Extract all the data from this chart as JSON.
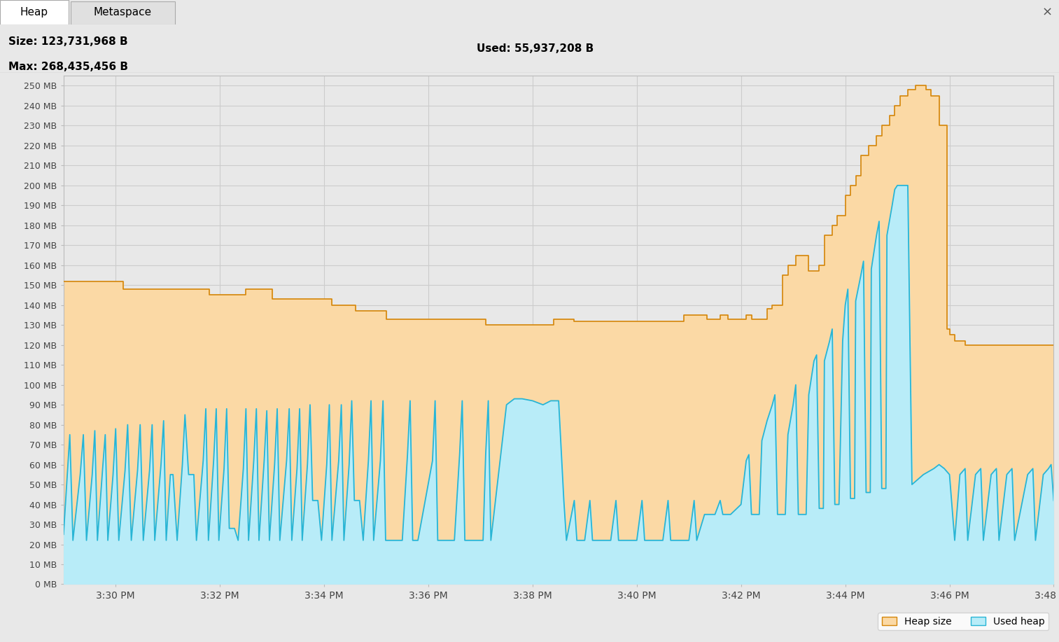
{
  "title_left_line1": "Size: 123,731,968 B",
  "title_left_line2": "Max: 268,435,456 B",
  "title_right": "Used: 55,937,208 B",
  "tab_heap": "Heap",
  "tab_metaspace": "Metaspace",
  "y_min_mb": 0,
  "y_max_mb": 255,
  "y_ticks_mb": [
    0,
    10,
    20,
    30,
    40,
    50,
    60,
    70,
    80,
    90,
    100,
    110,
    120,
    130,
    140,
    150,
    160,
    170,
    180,
    190,
    200,
    210,
    220,
    230,
    240,
    250
  ],
  "x_tick_labels": [
    "3:30 PM",
    "3:32 PM",
    "3:34 PM",
    "3:36 PM",
    "3:38 PM",
    "3:40 PM",
    "3:42 PM",
    "3:44 PM",
    "3:46 PM",
    "3:48 PM"
  ],
  "x_tick_positions": [
    1.0,
    3.0,
    5.0,
    7.0,
    9.0,
    11.0,
    13.0,
    15.0,
    17.0,
    19.0
  ],
  "heap_color": "#fbd9a5",
  "heap_edge_color": "#d4860a",
  "used_color": "#b8ecf8",
  "used_edge_color": "#28b5d5",
  "plot_bg_color": "#e8e8e8",
  "grid_color": "#cccccc",
  "heap_size_data": [
    [
      0.0,
      152
    ],
    [
      0.05,
      152
    ],
    [
      0.05,
      152
    ],
    [
      1.15,
      152
    ],
    [
      1.15,
      148
    ],
    [
      1.15,
      148
    ],
    [
      2.8,
      148
    ],
    [
      2.8,
      145
    ],
    [
      3.5,
      145
    ],
    [
      3.5,
      148
    ],
    [
      4.0,
      148
    ],
    [
      4.0,
      143
    ],
    [
      5.15,
      143
    ],
    [
      5.15,
      140
    ],
    [
      5.6,
      140
    ],
    [
      5.6,
      137
    ],
    [
      6.2,
      137
    ],
    [
      6.2,
      133
    ],
    [
      8.1,
      133
    ],
    [
      8.1,
      130
    ],
    [
      9.4,
      130
    ],
    [
      9.4,
      133
    ],
    [
      9.4,
      133
    ],
    [
      9.6,
      133
    ],
    [
      9.8,
      133
    ],
    [
      9.8,
      132
    ],
    [
      11.9,
      132
    ],
    [
      11.9,
      135
    ],
    [
      12.35,
      135
    ],
    [
      12.35,
      133
    ],
    [
      12.6,
      133
    ],
    [
      12.6,
      135
    ],
    [
      12.75,
      135
    ],
    [
      12.75,
      133
    ],
    [
      13.1,
      133
    ],
    [
      13.1,
      135
    ],
    [
      13.2,
      135
    ],
    [
      13.2,
      133
    ],
    [
      13.5,
      133
    ],
    [
      13.5,
      138
    ],
    [
      13.6,
      138
    ],
    [
      13.6,
      140
    ],
    [
      13.8,
      140
    ],
    [
      13.8,
      155
    ],
    [
      13.9,
      155
    ],
    [
      13.9,
      160
    ],
    [
      14.05,
      160
    ],
    [
      14.05,
      165
    ],
    [
      14.3,
      165
    ],
    [
      14.3,
      157
    ],
    [
      14.5,
      157
    ],
    [
      14.5,
      160
    ],
    [
      14.6,
      160
    ],
    [
      14.6,
      175
    ],
    [
      14.75,
      175
    ],
    [
      14.75,
      180
    ],
    [
      14.85,
      180
    ],
    [
      14.85,
      185
    ],
    [
      15.0,
      185
    ],
    [
      15.0,
      195
    ],
    [
      15.1,
      195
    ],
    [
      15.1,
      200
    ],
    [
      15.2,
      200
    ],
    [
      15.2,
      205
    ],
    [
      15.3,
      205
    ],
    [
      15.3,
      215
    ],
    [
      15.45,
      215
    ],
    [
      15.45,
      220
    ],
    [
      15.6,
      220
    ],
    [
      15.6,
      225
    ],
    [
      15.7,
      225
    ],
    [
      15.7,
      230
    ],
    [
      15.85,
      230
    ],
    [
      15.85,
      235
    ],
    [
      15.95,
      235
    ],
    [
      15.95,
      240
    ],
    [
      16.05,
      240
    ],
    [
      16.05,
      245
    ],
    [
      16.2,
      245
    ],
    [
      16.2,
      248
    ],
    [
      16.35,
      248
    ],
    [
      16.35,
      250
    ],
    [
      16.55,
      250
    ],
    [
      16.55,
      248
    ],
    [
      16.65,
      248
    ],
    [
      16.65,
      245
    ],
    [
      16.8,
      245
    ],
    [
      16.8,
      230
    ],
    [
      16.95,
      230
    ],
    [
      16.95,
      128
    ],
    [
      17.0,
      128
    ],
    [
      17.0,
      125
    ],
    [
      17.1,
      125
    ],
    [
      17.1,
      122
    ],
    [
      17.3,
      122
    ],
    [
      17.3,
      120
    ],
    [
      19.0,
      120
    ]
  ],
  "used_heap_data": [
    [
      0.0,
      25
    ],
    [
      0.12,
      75
    ],
    [
      0.18,
      22
    ],
    [
      0.32,
      55
    ],
    [
      0.38,
      75
    ],
    [
      0.44,
      22
    ],
    [
      0.55,
      55
    ],
    [
      0.6,
      77
    ],
    [
      0.65,
      22
    ],
    [
      0.75,
      58
    ],
    [
      0.8,
      75
    ],
    [
      0.85,
      22
    ],
    [
      0.95,
      55
    ],
    [
      1.0,
      78
    ],
    [
      1.06,
      22
    ],
    [
      1.18,
      57
    ],
    [
      1.23,
      80
    ],
    [
      1.3,
      22
    ],
    [
      1.42,
      57
    ],
    [
      1.47,
      80
    ],
    [
      1.53,
      22
    ],
    [
      1.65,
      57
    ],
    [
      1.7,
      80
    ],
    [
      1.75,
      22
    ],
    [
      1.87,
      60
    ],
    [
      1.92,
      82
    ],
    [
      1.97,
      22
    ],
    [
      2.05,
      55
    ],
    [
      2.1,
      55
    ],
    [
      2.18,
      22
    ],
    [
      2.28,
      60
    ],
    [
      2.33,
      85
    ],
    [
      2.4,
      55
    ],
    [
      2.5,
      55
    ],
    [
      2.55,
      22
    ],
    [
      2.68,
      62
    ],
    [
      2.73,
      88
    ],
    [
      2.78,
      22
    ],
    [
      2.88,
      62
    ],
    [
      2.93,
      88
    ],
    [
      2.98,
      22
    ],
    [
      3.08,
      58
    ],
    [
      3.13,
      88
    ],
    [
      3.18,
      28
    ],
    [
      3.28,
      28
    ],
    [
      3.35,
      22
    ],
    [
      3.45,
      58
    ],
    [
      3.5,
      88
    ],
    [
      3.55,
      22
    ],
    [
      3.65,
      62
    ],
    [
      3.7,
      88
    ],
    [
      3.75,
      22
    ],
    [
      3.85,
      62
    ],
    [
      3.9,
      87
    ],
    [
      3.95,
      22
    ],
    [
      4.05,
      60
    ],
    [
      4.1,
      88
    ],
    [
      4.15,
      22
    ],
    [
      4.28,
      62
    ],
    [
      4.33,
      88
    ],
    [
      4.38,
      22
    ],
    [
      4.48,
      58
    ],
    [
      4.53,
      88
    ],
    [
      4.58,
      22
    ],
    [
      4.68,
      60
    ],
    [
      4.73,
      90
    ],
    [
      4.78,
      42
    ],
    [
      4.88,
      42
    ],
    [
      4.95,
      22
    ],
    [
      5.05,
      60
    ],
    [
      5.1,
      90
    ],
    [
      5.15,
      22
    ],
    [
      5.28,
      62
    ],
    [
      5.33,
      90
    ],
    [
      5.38,
      22
    ],
    [
      5.48,
      60
    ],
    [
      5.53,
      92
    ],
    [
      5.58,
      42
    ],
    [
      5.68,
      42
    ],
    [
      5.75,
      22
    ],
    [
      5.85,
      62
    ],
    [
      5.9,
      92
    ],
    [
      5.95,
      22
    ],
    [
      6.08,
      62
    ],
    [
      6.13,
      92
    ],
    [
      6.18,
      22
    ],
    [
      6.5,
      22
    ],
    [
      6.6,
      65
    ],
    [
      6.65,
      92
    ],
    [
      6.7,
      22
    ],
    [
      6.8,
      22
    ],
    [
      7.08,
      62
    ],
    [
      7.13,
      92
    ],
    [
      7.18,
      22
    ],
    [
      7.5,
      22
    ],
    [
      7.6,
      65
    ],
    [
      7.65,
      92
    ],
    [
      7.7,
      22
    ],
    [
      8.05,
      22
    ],
    [
      8.1,
      65
    ],
    [
      8.15,
      92
    ],
    [
      8.2,
      22
    ],
    [
      8.5,
      90
    ],
    [
      8.65,
      93
    ],
    [
      8.8,
      93
    ],
    [
      9.0,
      92
    ],
    [
      9.2,
      90
    ],
    [
      9.35,
      92
    ],
    [
      9.5,
      92
    ],
    [
      9.6,
      42
    ],
    [
      9.65,
      22
    ],
    [
      9.8,
      42
    ],
    [
      9.85,
      22
    ],
    [
      9.9,
      22
    ],
    [
      10.0,
      22
    ],
    [
      10.1,
      42
    ],
    [
      10.15,
      22
    ],
    [
      10.3,
      22
    ],
    [
      10.5,
      22
    ],
    [
      10.6,
      42
    ],
    [
      10.65,
      22
    ],
    [
      10.8,
      22
    ],
    [
      11.0,
      22
    ],
    [
      11.1,
      42
    ],
    [
      11.15,
      22
    ],
    [
      11.3,
      22
    ],
    [
      11.5,
      22
    ],
    [
      11.6,
      42
    ],
    [
      11.65,
      22
    ],
    [
      11.8,
      22
    ],
    [
      12.0,
      22
    ],
    [
      12.1,
      42
    ],
    [
      12.15,
      22
    ],
    [
      12.3,
      35
    ],
    [
      12.5,
      35
    ],
    [
      12.6,
      42
    ],
    [
      12.65,
      35
    ],
    [
      12.8,
      35
    ],
    [
      13.0,
      40
    ],
    [
      13.1,
      62
    ],
    [
      13.15,
      65
    ],
    [
      13.2,
      35
    ],
    [
      13.35,
      35
    ],
    [
      13.4,
      72
    ],
    [
      13.5,
      82
    ],
    [
      13.6,
      90
    ],
    [
      13.65,
      95
    ],
    [
      13.7,
      35
    ],
    [
      13.85,
      35
    ],
    [
      13.9,
      75
    ],
    [
      14.0,
      90
    ],
    [
      14.05,
      100
    ],
    [
      14.1,
      35
    ],
    [
      14.25,
      35
    ],
    [
      14.3,
      95
    ],
    [
      14.4,
      112
    ],
    [
      14.45,
      115
    ],
    [
      14.5,
      38
    ],
    [
      14.58,
      38
    ],
    [
      14.6,
      112
    ],
    [
      14.7,
      122
    ],
    [
      14.75,
      128
    ],
    [
      14.8,
      40
    ],
    [
      14.88,
      40
    ],
    [
      14.95,
      122
    ],
    [
      15.0,
      140
    ],
    [
      15.05,
      148
    ],
    [
      15.1,
      43
    ],
    [
      15.18,
      43
    ],
    [
      15.2,
      142
    ],
    [
      15.3,
      155
    ],
    [
      15.35,
      162
    ],
    [
      15.4,
      46
    ],
    [
      15.48,
      46
    ],
    [
      15.5,
      158
    ],
    [
      15.6,
      175
    ],
    [
      15.65,
      182
    ],
    [
      15.7,
      48
    ],
    [
      15.78,
      48
    ],
    [
      15.8,
      175
    ],
    [
      15.9,
      190
    ],
    [
      15.95,
      198
    ],
    [
      16.0,
      200
    ],
    [
      16.1,
      200
    ],
    [
      16.2,
      200
    ],
    [
      16.28,
      50
    ],
    [
      16.5,
      55
    ],
    [
      16.7,
      58
    ],
    [
      16.8,
      60
    ],
    [
      16.9,
      58
    ],
    [
      17.0,
      55
    ],
    [
      17.1,
      22
    ],
    [
      17.2,
      55
    ],
    [
      17.3,
      58
    ],
    [
      17.35,
      22
    ],
    [
      17.5,
      55
    ],
    [
      17.6,
      58
    ],
    [
      17.65,
      22
    ],
    [
      17.8,
      55
    ],
    [
      17.9,
      58
    ],
    [
      17.95,
      22
    ],
    [
      18.1,
      55
    ],
    [
      18.2,
      58
    ],
    [
      18.25,
      22
    ],
    [
      18.5,
      55
    ],
    [
      18.6,
      58
    ],
    [
      18.65,
      22
    ],
    [
      18.8,
      55
    ],
    [
      18.9,
      58
    ],
    [
      18.95,
      60
    ],
    [
      19.0,
      42
    ]
  ]
}
